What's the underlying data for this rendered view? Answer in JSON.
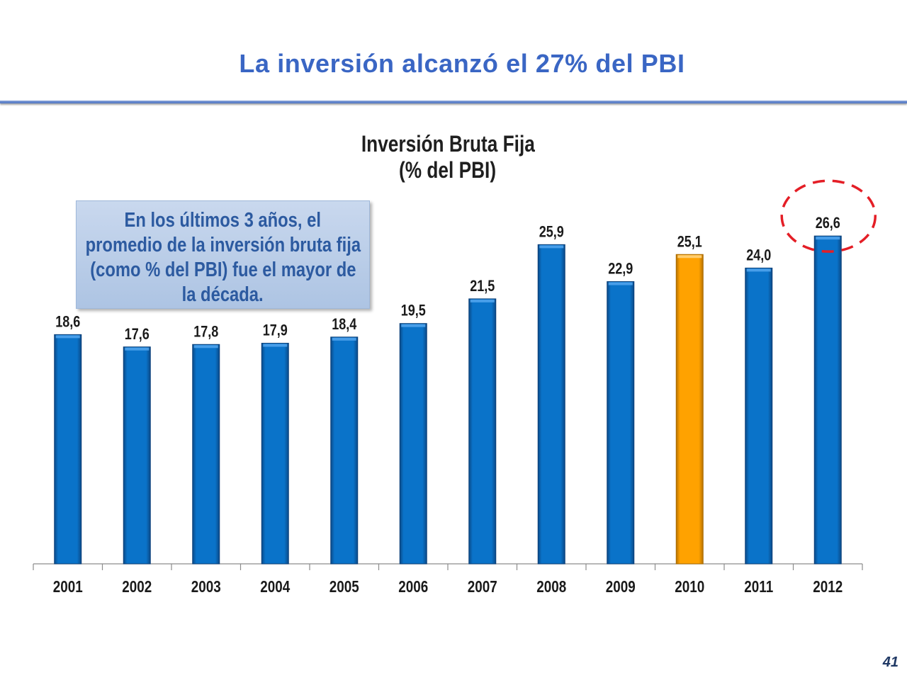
{
  "slide": {
    "title": "La inversión alcanzó el 27% del PBI",
    "page_number": "41",
    "title_color": "#3a66c4"
  },
  "chart_data": {
    "type": "bar",
    "title": "Inversión Bruta Fija",
    "subtitle": "(% del PBI)",
    "categories": [
      "2001",
      "2002",
      "2003",
      "2004",
      "2005",
      "2006",
      "2007",
      "2008",
      "2009",
      "2010",
      "2011",
      "2012"
    ],
    "values": [
      18.6,
      17.6,
      17.8,
      17.9,
      18.4,
      19.5,
      21.5,
      25.9,
      22.9,
      25.1,
      24.0,
      26.6
    ],
    "data_labels": [
      "18,6",
      "17,6",
      "17,8",
      "17,9",
      "18,4",
      "19,5",
      "21,5",
      "25,9",
      "22,9",
      "25,1",
      "24,0",
      "26,6"
    ],
    "ylim": [
      0,
      30
    ],
    "grid": false,
    "bar_color": "#0a73c9",
    "highlight": {
      "category": "2010",
      "color": "#ffa200"
    },
    "circled_category": "2012",
    "circle_color": "#e41e26"
  },
  "callout": {
    "lines": [
      "En los últimos 3 años, el",
      "promedio de la inversión bruta fija",
      "(como % del PBI) fue el mayor de",
      "la década."
    ],
    "text_color": "#2c5aa0"
  }
}
